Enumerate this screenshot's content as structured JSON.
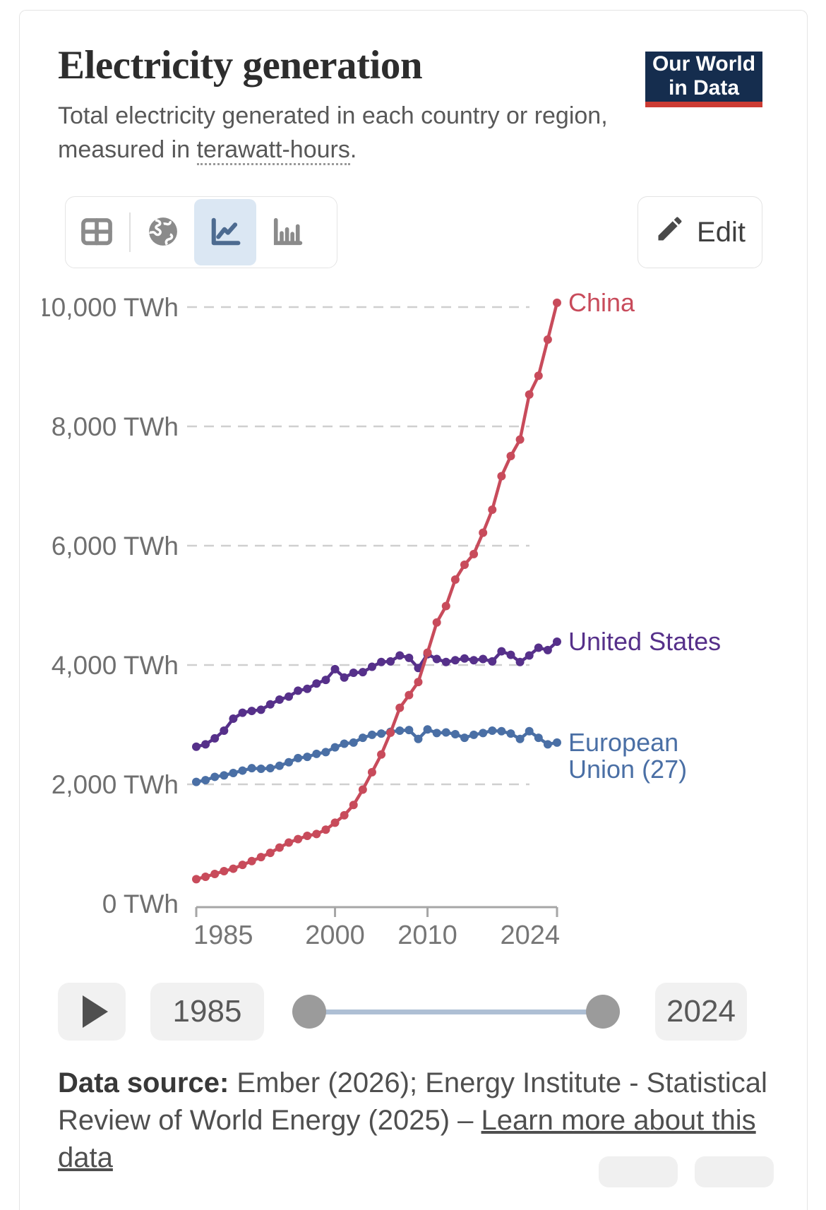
{
  "header": {
    "title": "Electricity generation",
    "subtitle_prefix": "Total electricity generated in each country or region, measured in ",
    "subtitle_link": "terawatt-hours",
    "subtitle_suffix": ".",
    "logo_line1": "Our World",
    "logo_line2": "in Data",
    "logo_bg_color": "#152d4e",
    "logo_accent_color": "#cc3b33"
  },
  "toolbar": {
    "tabs": [
      {
        "name": "table-tab",
        "icon": "table-icon",
        "active": false
      },
      {
        "name": "map-tab",
        "icon": "globe-icon",
        "active": false
      },
      {
        "name": "line-chart-tab",
        "icon": "line-chart-icon",
        "active": true
      },
      {
        "name": "bar-chart-tab",
        "icon": "bar-chart-icon",
        "active": false
      }
    ],
    "active_tab_bg": "#dbe7f3",
    "edit_label": "Edit"
  },
  "chart_data": {
    "type": "line",
    "title": "Electricity generation",
    "unit": "TWh",
    "x": [
      1985,
      1986,
      1987,
      1988,
      1989,
      1990,
      1991,
      1992,
      1993,
      1994,
      1995,
      1996,
      1997,
      1998,
      1999,
      2000,
      2001,
      2002,
      2003,
      2004,
      2005,
      2006,
      2007,
      2008,
      2009,
      2010,
      2011,
      2012,
      2013,
      2014,
      2015,
      2016,
      2017,
      2018,
      2019,
      2020,
      2021,
      2022,
      2023,
      2024
    ],
    "x_ticks": [
      1985,
      2000,
      2010,
      2024
    ],
    "x_tick_labels": [
      "1985",
      "2000",
      "2010",
      "2024"
    ],
    "y_ticks": [
      0,
      2000,
      4000,
      6000,
      8000,
      10000
    ],
    "y_tick_labels": [
      "0 TWh",
      "2,000 TWh",
      "4,000 TWh",
      "6,000 TWh",
      "8,000 TWh",
      "10,000 TWh"
    ],
    "ylim": [
      0,
      10000
    ],
    "xlim": [
      1985,
      2024
    ],
    "grid": "dashed-horizontal",
    "legend_position": "end-of-line-labels",
    "series": [
      {
        "name": "European Union (27)",
        "label_lines": [
          "European",
          "Union (27)"
        ],
        "color": "#4A6FA5",
        "values": [
          2040,
          2070,
          2125,
          2150,
          2190,
          2230,
          2270,
          2260,
          2270,
          2310,
          2370,
          2440,
          2460,
          2510,
          2540,
          2620,
          2680,
          2700,
          2780,
          2830,
          2850,
          2880,
          2900,
          2910,
          2760,
          2920,
          2860,
          2870,
          2840,
          2780,
          2830,
          2860,
          2900,
          2890,
          2850,
          2760,
          2890,
          2780,
          2670,
          2700
        ]
      },
      {
        "name": "United States",
        "label_lines": [
          "United States"
        ],
        "color": "#56308A",
        "values": [
          2630,
          2670,
          2770,
          2900,
          3100,
          3200,
          3230,
          3250,
          3340,
          3420,
          3470,
          3570,
          3600,
          3690,
          3750,
          3930,
          3790,
          3870,
          3880,
          3970,
          4050,
          4060,
          4160,
          4120,
          3950,
          4180,
          4100,
          4050,
          4080,
          4110,
          4080,
          4100,
          4060,
          4230,
          4170,
          4050,
          4160,
          4290,
          4250,
          4390
        ]
      },
      {
        "name": "China",
        "label_lines": [
          "China"
        ],
        "color": "#C84B5B",
        "values": [
          410,
          450,
          497,
          545,
          585,
          650,
          713,
          779,
          851,
          940,
          1023,
          1081,
          1136,
          1167,
          1239,
          1356,
          1481,
          1654,
          1911,
          2203,
          2500,
          2866,
          3282,
          3495,
          3715,
          4207,
          4713,
          4988,
          5432,
          5680,
          5860,
          6218,
          6604,
          7166,
          7503,
          7779,
          8534,
          8849,
          9456,
          10073
        ]
      }
    ]
  },
  "timeline": {
    "start_label": "1985",
    "end_label": "2024",
    "handle_positions": [
      0,
      1
    ]
  },
  "footer": {
    "source_label": "Data source:",
    "source_text": " Ember (2026); Energy Institute - Statistical Review of World Energy (2025) – ",
    "link_text": "Learn more about this data"
  }
}
